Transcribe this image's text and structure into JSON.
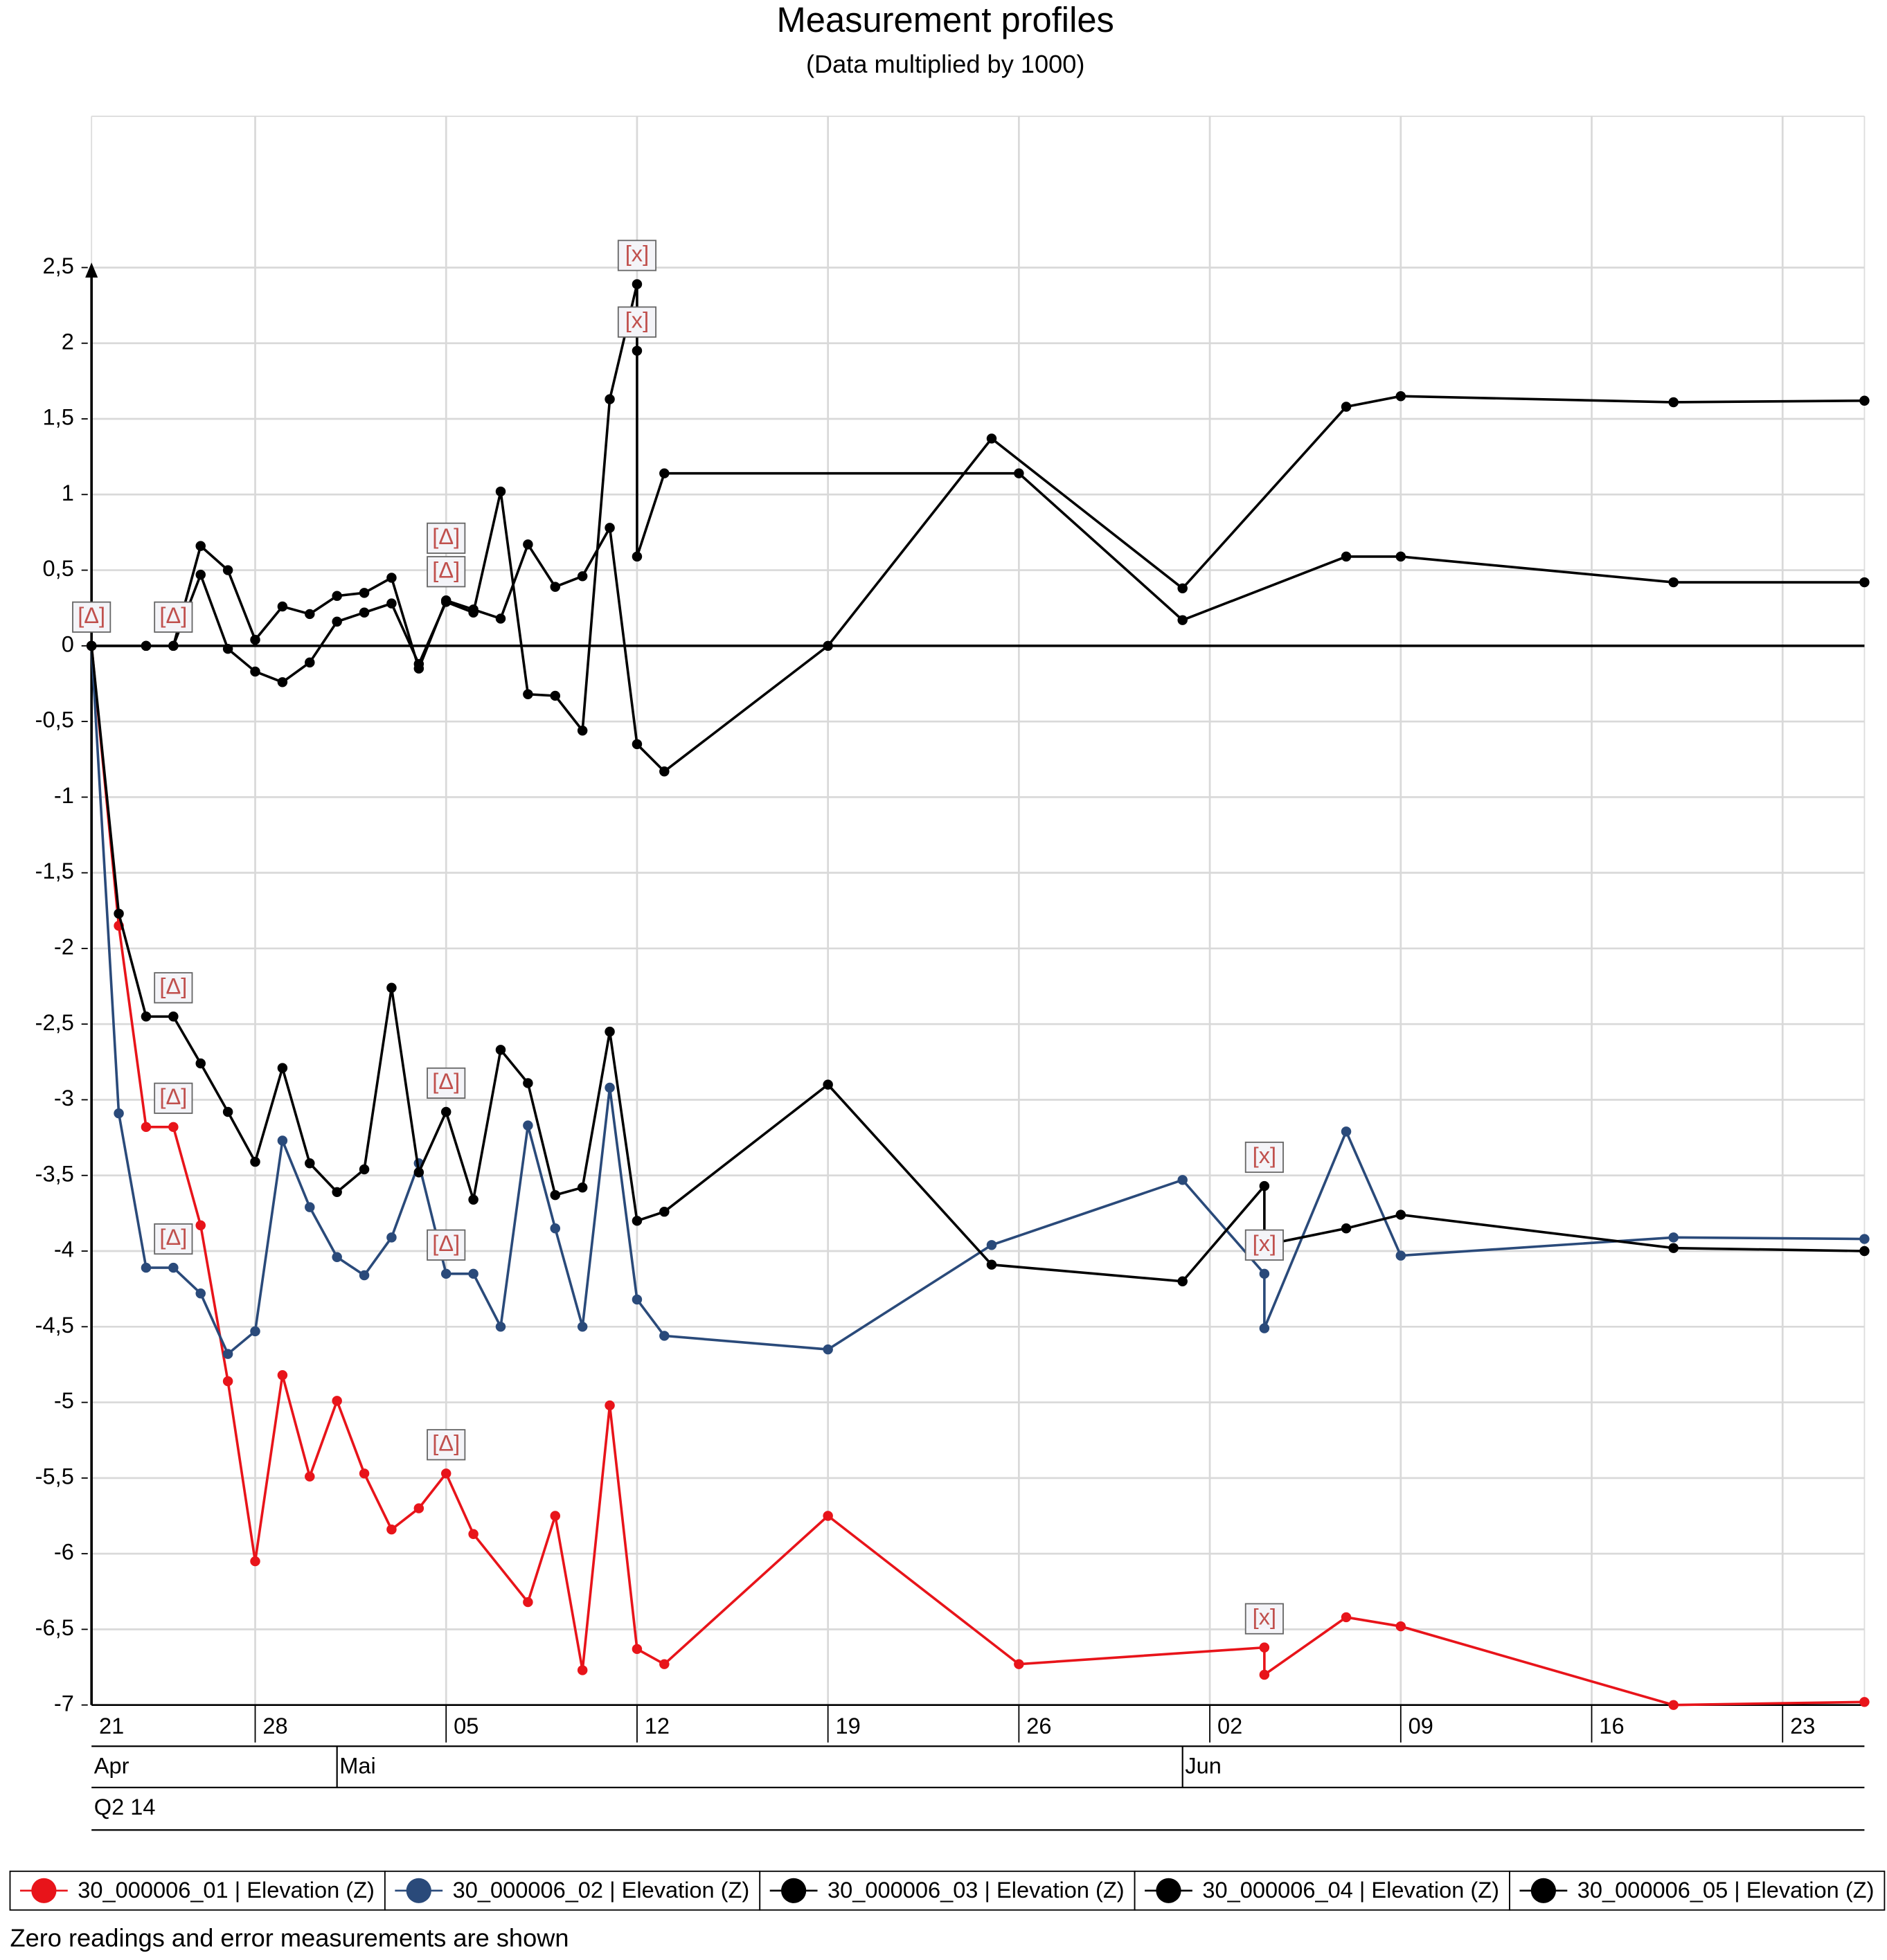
{
  "chart_data": {
    "type": "line",
    "title": "Measurement profiles",
    "subtitle": "(Data multiplied by 1000)",
    "footnote": "Zero readings and error measurements are shown",
    "xlim": [
      "2014-04-22",
      "2014-06-26"
    ],
    "xticks": [
      {
        "value": "2014-04-21",
        "label": "21"
      },
      {
        "value": "2014-04-28",
        "label": "28"
      },
      {
        "value": "2014-05-05",
        "label": "05"
      },
      {
        "value": "2014-05-12",
        "label": "12"
      },
      {
        "value": "2014-05-19",
        "label": "19"
      },
      {
        "value": "2014-05-26",
        "label": "26"
      },
      {
        "value": "2014-06-02",
        "label": "02"
      },
      {
        "value": "2014-06-09",
        "label": "09"
      },
      {
        "value": "2014-06-16",
        "label": "16"
      },
      {
        "value": "2014-06-23",
        "label": "23"
      }
    ],
    "month_labels": [
      {
        "value": "2014-04-01",
        "label": "Apr"
      },
      {
        "value": "2014-05-01",
        "label": "Mai"
      },
      {
        "value": "2014-06-01",
        "label": "Jun"
      }
    ],
    "quarter_label": {
      "value": "2014-04-01",
      "label": "Q2 14"
    },
    "ylim": [
      -7,
      3.5
    ],
    "yticks": [
      -7,
      {
        "value": -6.5,
        "label": "-6,5"
      },
      -6,
      {
        "value": -5.5,
        "label": "-5,5"
      },
      -5,
      {
        "value": -4.5,
        "label": "-4,5"
      },
      -4,
      {
        "value": -3.5,
        "label": "-3,5"
      },
      -3,
      {
        "value": -2.5,
        "label": "-2,5"
      },
      -2,
      {
        "value": -1.5,
        "label": "-1,5"
      },
      -1,
      {
        "value": -0.5,
        "label": "-0,5"
      },
      0,
      {
        "value": 0.5,
        "label": "0,5"
      },
      1,
      {
        "value": 1.5,
        "label": "1,5"
      },
      2,
      {
        "value": 2.5,
        "label": "2,5"
      }
    ],
    "grid": true,
    "legend": "bottom",
    "series": [
      {
        "name": "30_000006_01 | Elevation (Z)",
        "color": "#e8141a",
        "x": [
          "2014-04-22",
          "2014-04-23",
          "2014-04-24",
          "2014-04-25",
          "2014-04-26",
          "2014-04-27",
          "2014-04-28",
          "2014-04-29",
          "2014-04-30",
          "2014-05-01",
          "2014-05-02",
          "2014-05-03",
          "2014-05-04",
          "2014-05-05",
          "2014-05-06",
          "2014-05-08",
          "2014-05-09",
          "2014-05-10",
          "2014-05-11",
          "2014-05-12",
          "2014-05-13",
          "2014-05-19",
          "2014-05-26",
          "2014-06-04",
          "2014-06-04",
          "2014-06-07",
          "2014-06-09",
          "2014-06-19",
          "2014-06-26"
        ],
        "values": [
          0,
          -1.85,
          -3.18,
          -3.18,
          -3.83,
          -4.86,
          -6.05,
          -4.82,
          -5.49,
          -4.99,
          -5.47,
          -5.84,
          -5.7,
          -5.47,
          -5.87,
          -6.32,
          -5.75,
          -6.77,
          -5.02,
          -6.63,
          -6.73,
          -5.75,
          -6.73,
          -6.62,
          -6.8,
          -6.42,
          -6.48,
          -7,
          -6.98
        ],
        "point_labels": [
          "[Δ]",
          null,
          null,
          "[Δ]",
          null,
          null,
          null,
          null,
          null,
          null,
          null,
          null,
          null,
          "[Δ]",
          null,
          null,
          null,
          null,
          null,
          null,
          null,
          null,
          null,
          "[x]",
          null,
          null,
          null,
          null,
          null
        ]
      },
      {
        "name": "30_000006_02 | Elevation (Z)",
        "color": "#2a4a7a",
        "x": [
          "2014-04-22",
          "2014-04-23",
          "2014-04-24",
          "2014-04-25",
          "2014-04-26",
          "2014-04-27",
          "2014-04-28",
          "2014-04-29",
          "2014-04-30",
          "2014-05-01",
          "2014-05-02",
          "2014-05-03",
          "2014-05-04",
          "2014-05-05",
          "2014-05-06",
          "2014-05-07",
          "2014-05-08",
          "2014-05-09",
          "2014-05-10",
          "2014-05-11",
          "2014-05-12",
          "2014-05-13",
          "2014-05-19",
          "2014-05-25",
          "2014-06-01",
          "2014-06-04",
          "2014-06-04",
          "2014-06-07",
          "2014-06-09",
          "2014-06-19",
          "2014-06-26"
        ],
        "values": [
          0,
          -3.09,
          -4.11,
          -4.11,
          -4.28,
          -4.68,
          -4.53,
          -3.27,
          -3.71,
          -4.04,
          -4.16,
          -3.91,
          -3.42,
          -4.15,
          -4.15,
          -4.5,
          -3.17,
          -3.85,
          -4.5,
          -2.92,
          -4.32,
          -4.56,
          -4.65,
          -3.96,
          -3.53,
          -4.15,
          -4.51,
          -3.21,
          -4.03,
          -3.91,
          -3.92
        ],
        "point_labels": [
          null,
          null,
          null,
          "[Δ]",
          null,
          null,
          null,
          null,
          null,
          null,
          null,
          null,
          null,
          "[Δ]",
          null,
          null,
          null,
          null,
          null,
          null,
          null,
          null,
          null,
          null,
          null,
          "[x]",
          null,
          null,
          null,
          null,
          null
        ]
      },
      {
        "name": "30_000006_03 | Elevation (Z)",
        "color": "#000000",
        "x": [
          "2014-04-22",
          "2014-04-23",
          "2014-04-24",
          "2014-04-25",
          "2014-04-26",
          "2014-04-27",
          "2014-04-28",
          "2014-04-29",
          "2014-04-30",
          "2014-05-01",
          "2014-05-02",
          "2014-05-03",
          "2014-05-04",
          "2014-05-05",
          "2014-05-06",
          "2014-05-07",
          "2014-05-08",
          "2014-05-09",
          "2014-05-10",
          "2014-05-11",
          "2014-05-12",
          "2014-05-13",
          "2014-05-19",
          "2014-05-25",
          "2014-06-01",
          "2014-06-04",
          "2014-06-04",
          "2014-06-07",
          "2014-06-09",
          "2014-06-19",
          "2014-06-26"
        ],
        "values": [
          0,
          -1.77,
          -2.45,
          -2.45,
          -2.76,
          -3.08,
          -3.41,
          -2.79,
          -3.42,
          -3.61,
          -3.46,
          -2.26,
          -3.48,
          -3.08,
          -3.66,
          -2.67,
          -2.89,
          -3.63,
          -3.58,
          -2.55,
          -3.8,
          -3.74,
          -2.9,
          -4.09,
          -4.2,
          -3.57,
          -3.96,
          -3.85,
          -3.76,
          -3.98,
          -4
        ],
        "point_labels": [
          null,
          null,
          null,
          "[Δ]",
          null,
          null,
          null,
          null,
          null,
          null,
          null,
          null,
          null,
          "[Δ]",
          null,
          null,
          null,
          null,
          null,
          null,
          null,
          null,
          null,
          null,
          null,
          "[x]",
          null,
          null,
          null,
          null,
          null
        ]
      },
      {
        "name": "30_000006_04 | Elevation (Z)",
        "color": "#000000",
        "x": [
          "2014-04-22",
          "2014-04-24",
          "2014-04-25",
          "2014-04-26",
          "2014-04-27",
          "2014-04-28",
          "2014-04-29",
          "2014-04-30",
          "2014-05-01",
          "2014-05-02",
          "2014-05-03",
          "2014-05-04",
          "2014-05-05",
          "2014-05-06",
          "2014-05-07",
          "2014-05-08",
          "2014-05-09",
          "2014-05-10",
          "2014-05-11",
          "2014-05-12",
          "2014-05-13",
          "2014-05-19",
          "2014-05-25",
          "2014-06-01",
          "2014-06-07",
          "2014-06-09",
          "2014-06-19",
          "2014-06-26"
        ],
        "values": [
          0,
          0,
          0,
          0.66,
          0.5,
          0.04,
          0.26,
          0.21,
          0.33,
          0.35,
          0.45,
          -0.15,
          0.3,
          0.24,
          0.18,
          0.67,
          0.39,
          0.46,
          0.78,
          -0.65,
          -0.83,
          0,
          1.37,
          0.38,
          1.58,
          1.65,
          1.61,
          1.62
        ],
        "point_labels": [
          null,
          null,
          "[Δ]",
          null,
          null,
          null,
          null,
          null,
          null,
          null,
          null,
          null,
          "[Δ]",
          null,
          null,
          null,
          null,
          null,
          null,
          null,
          null,
          null,
          null,
          null,
          null,
          null,
          null,
          null
        ]
      },
      {
        "name": "30_000006_05 | Elevation (Z)",
        "color": "#000000",
        "x": [
          "2014-04-22",
          "2014-04-24",
          "2014-04-25",
          "2014-04-26",
          "2014-04-27",
          "2014-04-28",
          "2014-04-29",
          "2014-04-30",
          "2014-05-01",
          "2014-05-02",
          "2014-05-03",
          "2014-05-04",
          "2014-05-05",
          "2014-05-06",
          "2014-05-07",
          "2014-05-08",
          "2014-05-09",
          "2014-05-10",
          "2014-05-11",
          "2014-05-12",
          "2014-05-12",
          "2014-05-12",
          "2014-05-13",
          "2014-05-26",
          "2014-06-01",
          "2014-06-07",
          "2014-06-09",
          "2014-06-19",
          "2014-06-26"
        ],
        "values": [
          0,
          0,
          0,
          0.47,
          -0.02,
          -0.17,
          -0.24,
          -0.11,
          0.16,
          0.22,
          0.28,
          -0.12,
          0.29,
          0.22,
          1.02,
          -0.32,
          -0.33,
          -0.56,
          1.63,
          2.39,
          1.95,
          0.59,
          1.14,
          1.14,
          0.17,
          0.59,
          0.59,
          0.42,
          0.42
        ],
        "point_labels": [
          null,
          null,
          null,
          null,
          null,
          null,
          null,
          null,
          null,
          null,
          null,
          null,
          "[Δ]",
          null,
          null,
          null,
          null,
          null,
          null,
          "[x]",
          "[x]",
          null,
          null,
          null,
          null,
          null,
          null,
          null,
          null
        ]
      }
    ]
  }
}
